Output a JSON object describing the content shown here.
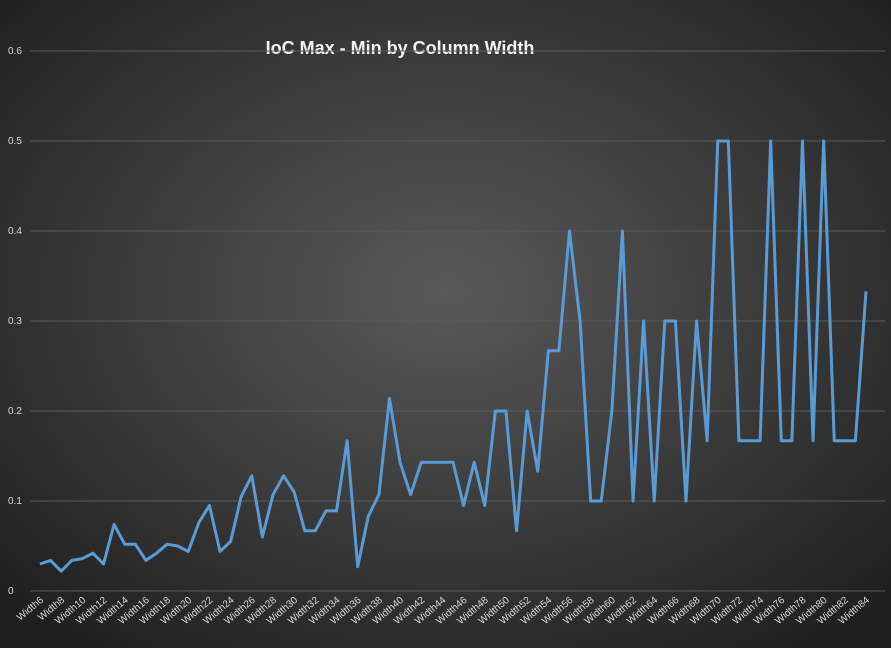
{
  "chart_data": {
    "type": "line",
    "title": "IoC Max - Min by Column Width",
    "categories": [
      "Width6",
      null,
      "Width8",
      null,
      "Width10",
      null,
      "Width12",
      null,
      "Width14",
      null,
      "Width16",
      null,
      "Width18",
      null,
      "Width20",
      null,
      "Width22",
      null,
      "Width24",
      null,
      "Width26",
      null,
      "Width28",
      null,
      "Width30",
      null,
      "Width32",
      null,
      "Width34",
      null,
      "Width36",
      null,
      "Width38",
      null,
      "Width40",
      null,
      "Width42",
      null,
      "Width44",
      null,
      "Width46",
      null,
      "Width48",
      null,
      "Width50",
      null,
      "Width52",
      null,
      "Width54",
      null,
      "Width56",
      null,
      "Width58",
      null,
      "Width60",
      null,
      "Width62",
      null,
      "Width64",
      null,
      "Width66",
      null,
      "Width68",
      null,
      "Width70",
      null,
      "Width72",
      null,
      "Width74",
      null,
      "Width76",
      null,
      "Width78",
      null,
      "Width80",
      null,
      "Width82",
      null,
      "Width84"
    ],
    "series": [
      {
        "color": "#5b9bd5",
        "values": [
          0.03,
          0.034,
          0.022,
          0.034,
          0.036,
          0.042,
          0.03,
          0.074,
          0.052,
          0.052,
          0.034,
          0.042,
          0.052,
          0.05,
          0.044,
          0.076,
          0.095,
          0.044,
          0.055,
          0.105,
          0.128,
          0.06,
          0.107,
          0.128,
          0.11,
          0.067,
          0.067,
          0.089,
          0.089,
          0.167,
          0.027,
          0.083,
          0.107,
          0.214,
          0.143,
          0.107,
          0.143,
          0.143,
          0.143,
          0.143,
          0.095,
          0.143,
          0.095,
          0.2,
          0.2,
          0.067,
          0.2,
          0.133,
          0.267,
          0.267,
          0.4,
          0.3,
          0.1,
          0.1,
          0.2,
          0.4,
          0.1,
          0.3,
          0.1,
          0.3,
          0.3,
          0.1,
          0.3,
          0.167,
          0.5,
          0.5,
          0.167,
          0.167,
          0.167,
          0.5,
          0.167,
          0.167,
          0.5,
          0.167,
          0.5,
          0.167,
          0.167,
          0.167,
          0.333
        ]
      }
    ],
    "ylim": [
      0,
      0.6
    ],
    "yticks": [
      0,
      0.1,
      0.2,
      0.3,
      0.4,
      0.5,
      0.6
    ],
    "grid": true
  }
}
